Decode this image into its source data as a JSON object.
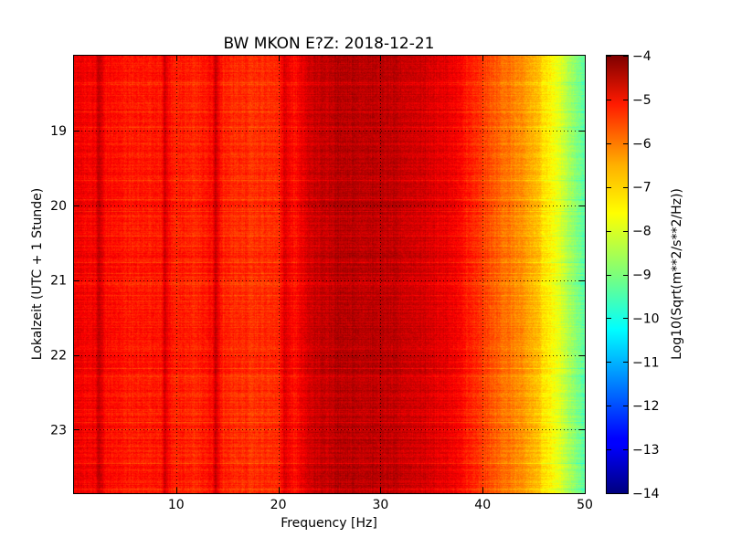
{
  "chart_data": {
    "type": "heatmap",
    "title": "BW MKON E?Z: 2018-12-21",
    "xlabel": "Frequency [Hz]",
    "ylabel": "Lokalzeit (UTC + 1 Stunde)",
    "colorbar_label": "Log10(Sqrt(m**2/s**2/Hz))",
    "xlim": [
      0,
      50
    ],
    "ylim": [
      18.0,
      23.85
    ],
    "y_inverted": true,
    "clim": [
      -14,
      -4
    ],
    "colormap": "jet",
    "grid": true,
    "xticks": [
      {
        "value": 10,
        "label": "10"
      },
      {
        "value": 20,
        "label": "20"
      },
      {
        "value": 30,
        "label": "30"
      },
      {
        "value": 40,
        "label": "40"
      },
      {
        "value": 50,
        "label": "50"
      }
    ],
    "yticks": [
      {
        "value": 19,
        "label": "19"
      },
      {
        "value": 20,
        "label": "20"
      },
      {
        "value": 21,
        "label": "21"
      },
      {
        "value": 22,
        "label": "22"
      },
      {
        "value": 23,
        "label": "23"
      }
    ],
    "cticks": [
      {
        "value": -4,
        "label": "−4"
      },
      {
        "value": -5,
        "label": "−5"
      },
      {
        "value": -6,
        "label": "−6"
      },
      {
        "value": -7,
        "label": "−7"
      },
      {
        "value": -8,
        "label": "−8"
      },
      {
        "value": -9,
        "label": "−9"
      },
      {
        "value": -10,
        "label": "−10"
      },
      {
        "value": -11,
        "label": "−11"
      },
      {
        "value": -12,
        "label": "−12"
      },
      {
        "value": -13,
        "label": "−13"
      },
      {
        "value": -14,
        "label": "−14"
      }
    ],
    "spectrum_profile": [
      {
        "freq": 0.0,
        "value": -5.1
      },
      {
        "freq": 2.0,
        "value": -5.2
      },
      {
        "freq": 2.4,
        "value": -4.6
      },
      {
        "freq": 3.0,
        "value": -5.3
      },
      {
        "freq": 6.0,
        "value": -5.5
      },
      {
        "freq": 8.5,
        "value": -5.4
      },
      {
        "freq": 8.8,
        "value": -4.8
      },
      {
        "freq": 9.5,
        "value": -5.5
      },
      {
        "freq": 12.0,
        "value": -5.6
      },
      {
        "freq": 13.5,
        "value": -5.3
      },
      {
        "freq": 13.8,
        "value": -4.7
      },
      {
        "freq": 14.5,
        "value": -5.6
      },
      {
        "freq": 18.0,
        "value": -5.7
      },
      {
        "freq": 20.0,
        "value": -5.6
      },
      {
        "freq": 20.6,
        "value": -4.9
      },
      {
        "freq": 21.5,
        "value": -5.4
      },
      {
        "freq": 23.0,
        "value": -4.8
      },
      {
        "freq": 26.0,
        "value": -4.5
      },
      {
        "freq": 30.0,
        "value": -4.6
      },
      {
        "freq": 34.0,
        "value": -4.8
      },
      {
        "freq": 37.0,
        "value": -5.1
      },
      {
        "freq": 39.0,
        "value": -5.6
      },
      {
        "freq": 41.0,
        "value": -6.1
      },
      {
        "freq": 43.0,
        "value": -6.5
      },
      {
        "freq": 45.0,
        "value": -7.0
      },
      {
        "freq": 46.5,
        "value": -7.6
      },
      {
        "freq": 48.0,
        "value": -8.3
      },
      {
        "freq": 49.0,
        "value": -8.9
      },
      {
        "freq": 50.0,
        "value": -9.3
      }
    ]
  }
}
